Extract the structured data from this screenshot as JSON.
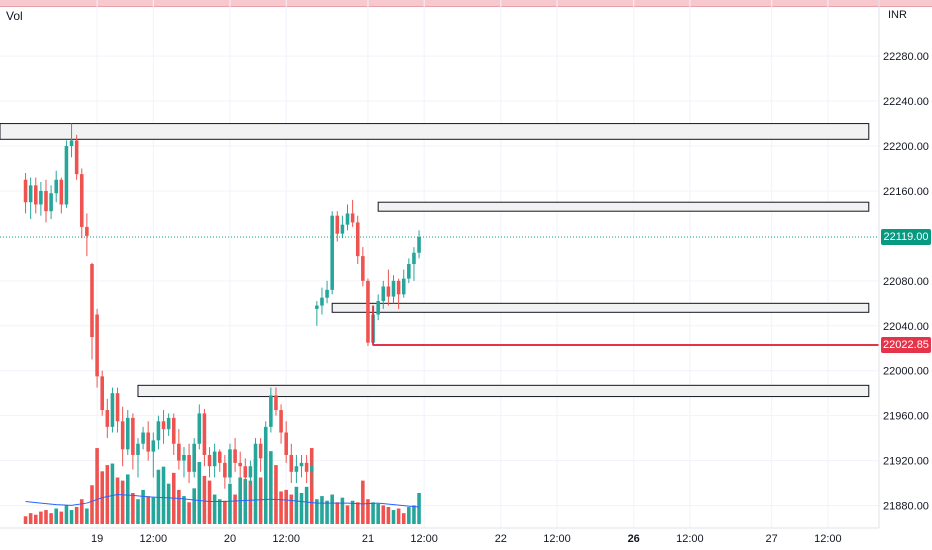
{
  "header": {
    "indicator_label": "Vol",
    "currency": "INR"
  },
  "price_tags": {
    "last": {
      "value": "22119.00",
      "color": "#089981"
    },
    "line": {
      "value": "22022.85",
      "color": "#e5334a"
    }
  },
  "colors": {
    "up": "#26a69a",
    "down": "#ef5350",
    "volume_ma": "#2962ff",
    "zone_fill": "#f2f2f2",
    "zone_border": "#131722",
    "alert_line": "#e5334a",
    "last_price_line": "#089981"
  },
  "chart_data": {
    "type": "candlestick",
    "y_axis": {
      "range": [
        21860,
        22330
      ],
      "ticks": [
        "22280.00",
        "22240.00",
        "22200.00",
        "22160.00",
        "22080.00",
        "22040.00",
        "22000.00",
        "21960.00",
        "21920.00",
        "21880.00"
      ]
    },
    "x_axis": {
      "range": [
        -5,
        167
      ],
      "ticks": [
        {
          "label": "19",
          "x": 14,
          "bold": false
        },
        {
          "label": "12:00",
          "x": 25,
          "bold": false
        },
        {
          "label": "20",
          "x": 40,
          "bold": false
        },
        {
          "label": "12:00",
          "x": 51,
          "bold": false
        },
        {
          "label": "21",
          "x": 67,
          "bold": false
        },
        {
          "label": "12:00",
          "x": 78,
          "bold": false
        },
        {
          "label": "22",
          "x": 93,
          "bold": false
        },
        {
          "label": "12:00",
          "x": 104,
          "bold": false
        },
        {
          "label": "26",
          "x": 119,
          "bold": true
        },
        {
          "label": "12:00",
          "x": 130,
          "bold": false
        },
        {
          "label": "27",
          "x": 146,
          "bold": false
        },
        {
          "label": "12:00",
          "x": 157,
          "bold": false
        }
      ]
    },
    "grid": true,
    "candles": [
      [
        0,
        22170,
        22176,
        22140,
        22150
      ],
      [
        1,
        22150,
        22172,
        22135,
        22165
      ],
      [
        2,
        22165,
        22172,
        22140,
        22148
      ],
      [
        3,
        22148,
        22168,
        22138,
        22160
      ],
      [
        4,
        22160,
        22170,
        22132,
        22142
      ],
      [
        5,
        22142,
        22165,
        22135,
        22158
      ],
      [
        6,
        22158,
        22178,
        22150,
        22170
      ],
      [
        7,
        22170,
        22172,
        22140,
        22148
      ],
      [
        8,
        22148,
        22205,
        22145,
        22200
      ],
      [
        9,
        22200,
        22220,
        22190,
        22205
      ],
      [
        10,
        22205,
        22210,
        22170,
        22175
      ],
      [
        11,
        22175,
        22180,
        22118,
        22128
      ],
      [
        12,
        22128,
        22140,
        22102,
        22120
      ],
      [
        13,
        22095,
        22096,
        22010,
        22030
      ],
      [
        14,
        22050,
        22055,
        21985,
        21995
      ],
      [
        15,
        21995,
        22000,
        21960,
        21965
      ],
      [
        16,
        21965,
        21975,
        21940,
        21950
      ],
      [
        17,
        21950,
        21985,
        21945,
        21980
      ],
      [
        18,
        21980,
        21985,
        21945,
        21955
      ],
      [
        19,
        21955,
        21968,
        21915,
        21930
      ],
      [
        20,
        21930,
        21965,
        21925,
        21958
      ],
      [
        21,
        21958,
        21962,
        21912,
        21925
      ],
      [
        22,
        21925,
        21940,
        21905,
        21935
      ],
      [
        23,
        21935,
        21950,
        21930,
        21945
      ],
      [
        24,
        21945,
        21955,
        21920,
        21928
      ],
      [
        25,
        21928,
        21945,
        21905,
        21938
      ],
      [
        26,
        21938,
        21960,
        21930,
        21955
      ],
      [
        27,
        21955,
        21965,
        21935,
        21948
      ],
      [
        28,
        21948,
        21962,
        21942,
        21958
      ],
      [
        29,
        21958,
        21962,
        21925,
        21935
      ],
      [
        30,
        21935,
        21948,
        21912,
        21920
      ],
      [
        31,
        21920,
        21932,
        21905,
        21925
      ],
      [
        32,
        21925,
        21935,
        21900,
        21910
      ],
      [
        33,
        21910,
        21940,
        21905,
        21935
      ],
      [
        34,
        21935,
        21970,
        21930,
        21962
      ],
      [
        35,
        21962,
        21966,
        21915,
        21925
      ],
      [
        36,
        21925,
        21932,
        21905,
        21915
      ],
      [
        37,
        21915,
        21935,
        21905,
        21928
      ],
      [
        38,
        21928,
        21930,
        21910,
        21918
      ],
      [
        39,
        21918,
        21925,
        21895,
        21905
      ],
      [
        40,
        21905,
        21935,
        21900,
        21930
      ],
      [
        41,
        21930,
        21940,
        21910,
        21918
      ],
      [
        42,
        21918,
        21928,
        21905,
        21915
      ],
      [
        43,
        21915,
        21922,
        21895,
        21905
      ],
      [
        44,
        21905,
        21920,
        21898,
        21915
      ],
      [
        45,
        21915,
        21940,
        21910,
        21935
      ],
      [
        46,
        21935,
        21940,
        21910,
        21922
      ],
      [
        47,
        21922,
        21955,
        21918,
        21950
      ],
      [
        48,
        21950,
        21985,
        21945,
        21978
      ],
      [
        49,
        21978,
        21985,
        21960,
        21965
      ],
      [
        50,
        21965,
        21970,
        21935,
        21945
      ],
      [
        51,
        21945,
        21955,
        21918,
        21925
      ],
      [
        52,
        21925,
        21935,
        21900,
        21910
      ],
      [
        53,
        21910,
        21925,
        21900,
        21915
      ],
      [
        54,
        21915,
        21925,
        21905,
        21918
      ],
      [
        55,
        21918,
        21925,
        21900,
        21910
      ],
      [
        56,
        21910,
        21920,
        21898,
        21915
      ],
      [
        57,
        22055,
        22062,
        22040,
        22058
      ],
      [
        58,
        22058,
        22074,
        22050,
        22065
      ],
      [
        59,
        22065,
        22080,
        22060,
        22072
      ],
      [
        60,
        22072,
        22142,
        22068,
        22138
      ],
      [
        61,
        22138,
        22142,
        22115,
        22122
      ],
      [
        62,
        22122,
        22138,
        22118,
        22130
      ],
      [
        63,
        22130,
        22148,
        22125,
        22140
      ],
      [
        64,
        22140,
        22152,
        22128,
        22132
      ],
      [
        65,
        22132,
        22138,
        22095,
        22102
      ],
      [
        66,
        22102,
        22110,
        22075,
        22080
      ],
      [
        67,
        22080,
        22082,
        22022,
        22025
      ],
      [
        68,
        22025,
        22058,
        22022,
        22050
      ],
      [
        69,
        22050,
        22068,
        22045,
        22062
      ],
      [
        70,
        22062,
        22080,
        22055,
        22075
      ],
      [
        71,
        22075,
        22090,
        22058,
        22066
      ],
      [
        72,
        22066,
        22085,
        22060,
        22080
      ],
      [
        73,
        22080,
        22082,
        22055,
        22068
      ],
      [
        74,
        22068,
        22090,
        22065,
        22082
      ],
      [
        75,
        22082,
        22100,
        22078,
        22095
      ],
      [
        76,
        22095,
        22110,
        22080,
        22105
      ],
      [
        77,
        22105,
        22125,
        22100,
        22119
      ]
    ],
    "volume": [
      [
        0,
        5,
        "down"
      ],
      [
        1,
        7,
        "down"
      ],
      [
        2,
        6,
        "down"
      ],
      [
        3,
        8,
        "down"
      ],
      [
        4,
        9,
        "down"
      ],
      [
        5,
        7,
        "down"
      ],
      [
        6,
        10,
        "up"
      ],
      [
        7,
        8,
        "down"
      ],
      [
        8,
        12,
        "up"
      ],
      [
        9,
        9,
        "up"
      ],
      [
        10,
        11,
        "down"
      ],
      [
        11,
        16,
        "down"
      ],
      [
        12,
        10,
        "up"
      ],
      [
        13,
        25,
        "down"
      ],
      [
        14,
        49,
        "down"
      ],
      [
        15,
        34,
        "down"
      ],
      [
        16,
        38,
        "down"
      ],
      [
        17,
        39,
        "up"
      ],
      [
        18,
        30,
        "down"
      ],
      [
        19,
        28,
        "down"
      ],
      [
        20,
        32,
        "up"
      ],
      [
        21,
        20,
        "down"
      ],
      [
        22,
        16,
        "up"
      ],
      [
        23,
        22,
        "up"
      ],
      [
        24,
        18,
        "down"
      ],
      [
        25,
        17,
        "up"
      ],
      [
        26,
        35,
        "up"
      ],
      [
        27,
        37,
        "up"
      ],
      [
        28,
        26,
        "up"
      ],
      [
        29,
        33,
        "down"
      ],
      [
        30,
        22,
        "down"
      ],
      [
        31,
        18,
        "up"
      ],
      [
        32,
        14,
        "down"
      ],
      [
        33,
        23,
        "up"
      ],
      [
        34,
        40,
        "up"
      ],
      [
        35,
        31,
        "down"
      ],
      [
        36,
        28,
        "down"
      ],
      [
        37,
        19,
        "up"
      ],
      [
        38,
        16,
        "up"
      ],
      [
        39,
        15,
        "down"
      ],
      [
        40,
        26,
        "up"
      ],
      [
        41,
        19,
        "down"
      ],
      [
        42,
        30,
        "up"
      ],
      [
        43,
        29,
        "up"
      ],
      [
        44,
        28,
        "down"
      ],
      [
        45,
        42,
        "up"
      ],
      [
        46,
        30,
        "down"
      ],
      [
        47,
        45,
        "up"
      ],
      [
        48,
        47,
        "up"
      ],
      [
        49,
        38,
        "down"
      ],
      [
        50,
        21,
        "down"
      ],
      [
        51,
        22,
        "down"
      ],
      [
        52,
        19,
        "down"
      ],
      [
        53,
        24,
        "up"
      ],
      [
        54,
        20,
        "up"
      ],
      [
        55,
        24,
        "up"
      ],
      [
        56,
        49,
        "down"
      ],
      [
        57,
        16,
        "up"
      ],
      [
        58,
        18,
        "up"
      ],
      [
        59,
        15,
        "up"
      ],
      [
        60,
        19,
        "up"
      ],
      [
        61,
        14,
        "down"
      ],
      [
        62,
        17,
        "up"
      ],
      [
        63,
        12,
        "down"
      ],
      [
        64,
        15,
        "up"
      ],
      [
        65,
        14,
        "down"
      ],
      [
        66,
        28,
        "down"
      ],
      [
        67,
        16,
        "down"
      ],
      [
        68,
        14,
        "up"
      ],
      [
        69,
        13,
        "up"
      ],
      [
        70,
        12,
        "down"
      ],
      [
        71,
        11,
        "down"
      ],
      [
        72,
        9,
        "up"
      ],
      [
        73,
        10,
        "down"
      ],
      [
        74,
        7,
        "down"
      ],
      [
        75,
        11,
        "up"
      ],
      [
        76,
        12,
        "up"
      ],
      [
        77,
        20,
        "up"
      ]
    ],
    "volume_ma": [
      [
        0,
        14.5
      ],
      [
        3,
        13.5
      ],
      [
        6,
        12.5
      ],
      [
        9,
        12
      ],
      [
        12,
        13.5
      ],
      [
        15,
        17
      ],
      [
        18,
        19
      ],
      [
        21,
        18.5
      ],
      [
        24,
        17.5
      ],
      [
        27,
        17
      ],
      [
        30,
        16.5
      ],
      [
        33,
        15.5
      ],
      [
        36,
        14.5
      ],
      [
        39,
        14.5
      ],
      [
        42,
        15
      ],
      [
        45,
        15.5
      ],
      [
        48,
        16
      ],
      [
        51,
        15.5
      ],
      [
        54,
        14.5
      ],
      [
        57,
        13.5
      ],
      [
        60,
        13.5
      ],
      [
        63,
        13.5
      ],
      [
        66,
        13
      ],
      [
        69,
        13.5
      ],
      [
        72,
        12.5
      ],
      [
        75,
        11.5
      ],
      [
        77,
        11
      ]
    ],
    "zones": [
      {
        "x0": -5,
        "x1": 165,
        "y0": 22206,
        "y1": 22220
      },
      {
        "x0": 69,
        "x1": 165,
        "y0": 22142,
        "y1": 22150
      },
      {
        "x0": 60,
        "x1": 165,
        "y0": 22052,
        "y1": 22060
      },
      {
        "x0": 22,
        "x1": 165,
        "y0": 21977,
        "y1": 21987
      }
    ],
    "horizontal_lines": [
      {
        "kind": "alert",
        "x0": 68,
        "y": 22022.85
      },
      {
        "kind": "last_price",
        "x0": -5,
        "y": 22119.0
      }
    ]
  }
}
